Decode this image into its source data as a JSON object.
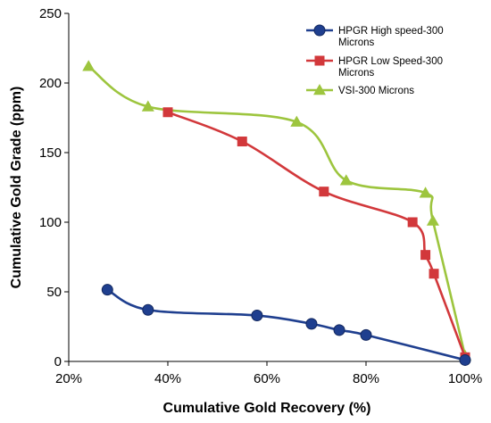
{
  "chart_data": {
    "type": "line",
    "xlabel": "Cumulative Gold Recovery (%)",
    "ylabel": "Cumulative Gold Grade (ppm)",
    "xlim": [
      0.2,
      1.0
    ],
    "ylim": [
      0,
      250
    ],
    "x_ticks": [
      "20%",
      "40%",
      "60%",
      "80%",
      "100%"
    ],
    "x_tick_values": [
      0.2,
      0.4,
      0.6,
      0.8,
      1.0
    ],
    "y_ticks": [
      "0",
      "50",
      "100",
      "150",
      "200",
      "250"
    ],
    "y_tick_values": [
      0,
      50,
      100,
      150,
      200,
      250
    ],
    "grid": false,
    "legend_position": "top-right",
    "series": [
      {
        "name": "HPGR High speed-300 Microns",
        "color": "#1f3f8f",
        "marker": "circle",
        "x": [
          0.278,
          0.36,
          0.58,
          0.69,
          0.746,
          0.8,
          1.0
        ],
        "y": [
          51.5,
          37,
          33,
          27,
          22.5,
          19,
          1
        ]
      },
      {
        "name": "HPGR Low Speed-300 Microns",
        "color": "#d2383b",
        "marker": "square",
        "x": [
          0.4,
          0.55,
          0.715,
          0.894,
          0.92,
          0.937,
          1.0
        ],
        "y": [
          179,
          158,
          122,
          100,
          76.5,
          63,
          3
        ]
      },
      {
        "name": "VSI-300 Microns",
        "color": "#9dc53e",
        "marker": "triangle",
        "x": [
          0.24,
          0.36,
          0.66,
          0.76,
          0.92,
          0.935,
          1.0
        ],
        "y": [
          212,
          183,
          172,
          130,
          121,
          101,
          4
        ]
      }
    ]
  }
}
